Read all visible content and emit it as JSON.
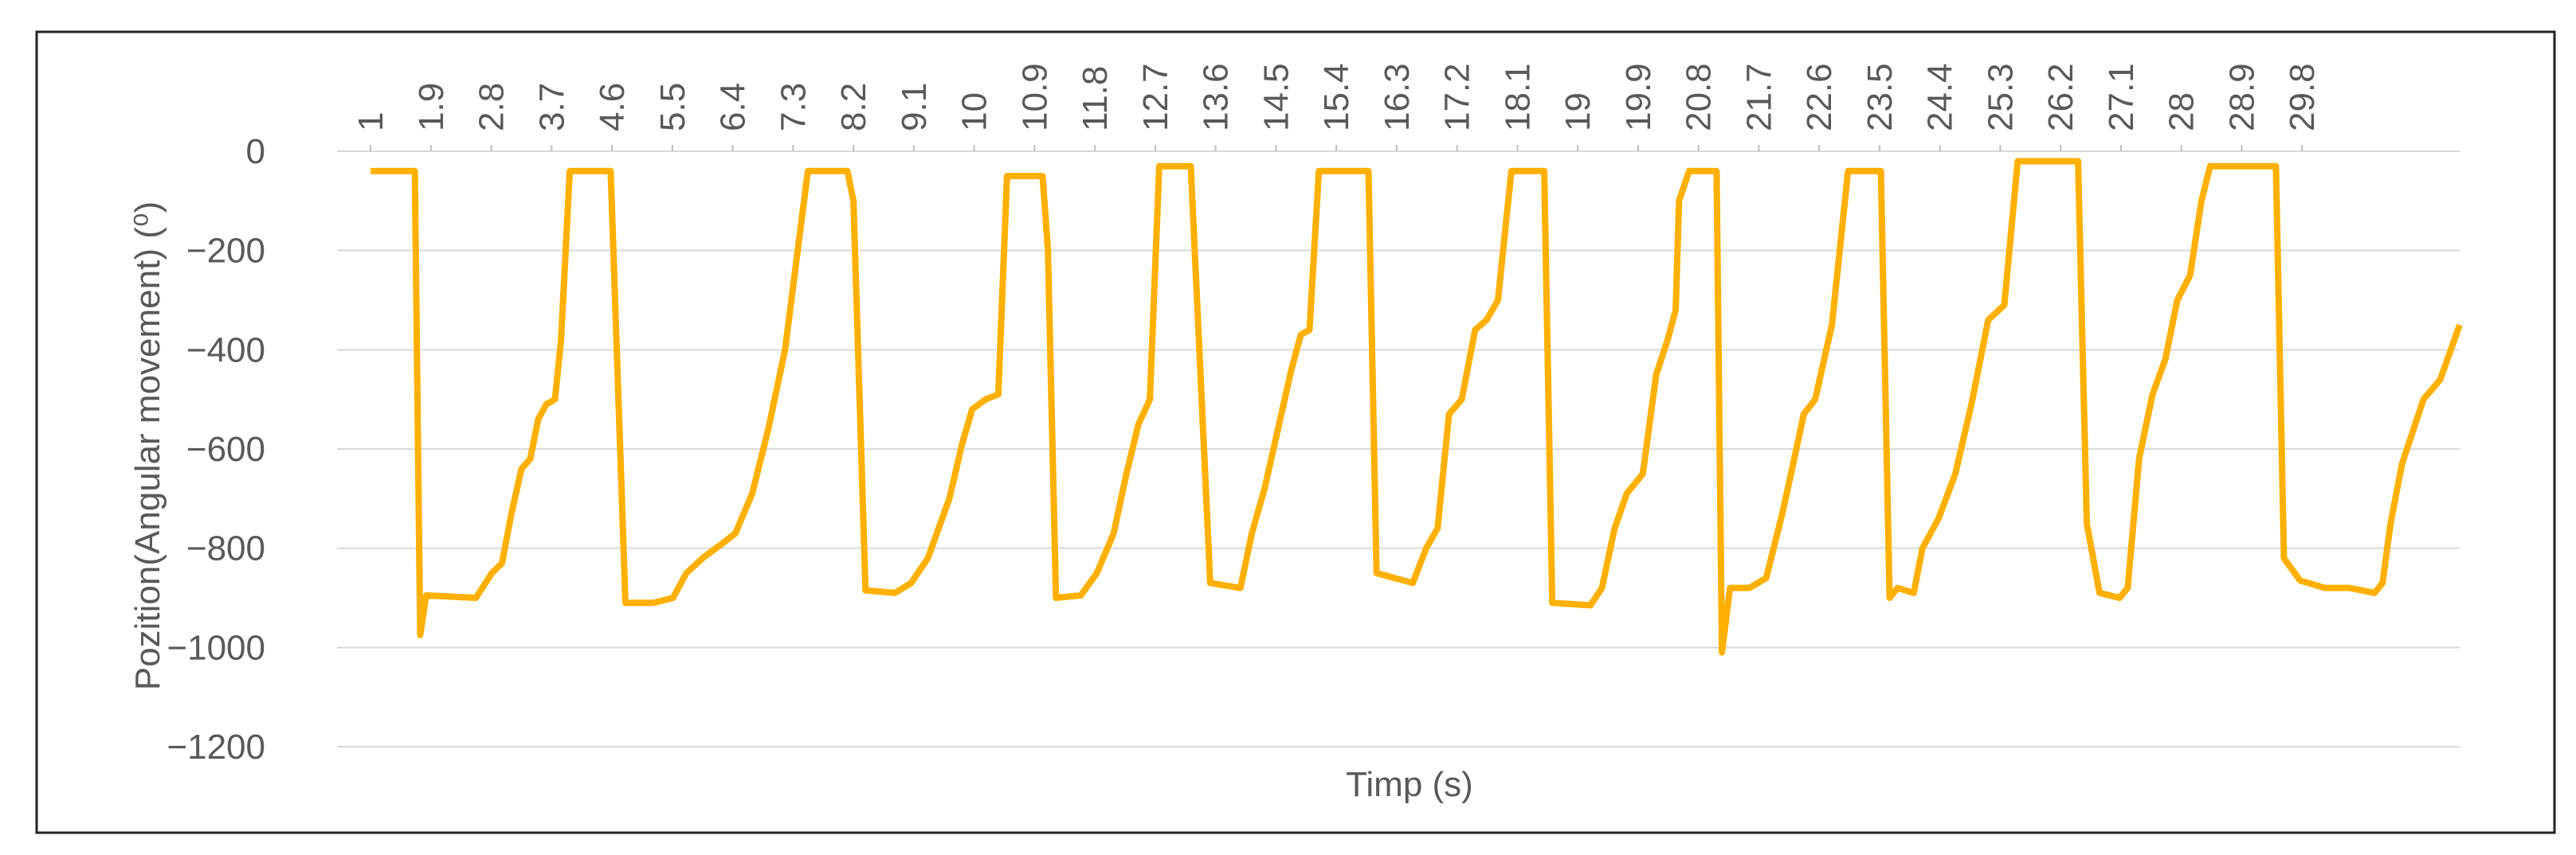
{
  "chart_data": {
    "type": "line",
    "x_label": "Timp (s)",
    "y_label": "Pozition(Angular movement) (⁰)",
    "xlim": [
      0.5,
      32.15
    ],
    "xticks": [
      1,
      1.9,
      2.8,
      3.7,
      4.6,
      5.5,
      6.4,
      7.3,
      8.2,
      9.1,
      10,
      10.9,
      11.8,
      12.7,
      13.6,
      14.5,
      15.4,
      16.3,
      17.2,
      18.1,
      19,
      19.9,
      20.8,
      21.7,
      22.6,
      23.5,
      24.4,
      25.3,
      26.2,
      27.1,
      28,
      28.9,
      29.8
    ],
    "ylim": [
      -1200,
      0
    ],
    "yticks": [
      0,
      {
        "value": -200,
        "label": "−200"
      },
      {
        "value": -400,
        "label": "−400"
      },
      {
        "value": -600,
        "label": "−600"
      },
      {
        "value": -800,
        "label": "−800"
      },
      {
        "value": -1000,
        "label": "−1000"
      },
      {
        "value": -1200,
        "label": "−1200"
      }
    ],
    "grid": true,
    "x": [
      1,
      1.66,
      1.74,
      1.83,
      2.57,
      2.81,
      2.96,
      3.1,
      3.25,
      3.38,
      3.5,
      3.62,
      3.75,
      3.84,
      3.97,
      4.58,
      4.8,
      5.22,
      5.51,
      5.71,
      5.95,
      6.25,
      6.44,
      6.69,
      6.93,
      7.18,
      7.35,
      7.52,
      8.11,
      8.2,
      8.38,
      8.82,
      9.06,
      9.31,
      9.63,
      9.82,
      9.97,
      10.17,
      10.36,
      10.49,
      11.02,
      11.1,
      11.22,
      11.59,
      11.83,
      12.08,
      12.27,
      12.45,
      12.62,
      12.76,
      13.23,
      13.52,
      13.97,
      14.14,
      14.33,
      14.53,
      14.73,
      14.87,
      15.0,
      15.14,
      15.88,
      16.0,
      16.54,
      16.74,
      16.91,
      17.08,
      17.27,
      17.47,
      17.64,
      17.81,
      18.01,
      18.5,
      18.62,
      19.19,
      19.36,
      19.55,
      19.73,
      19.97,
      20.17,
      20.34,
      20.46,
      20.51,
      20.66,
      21.07,
      21.15,
      21.27,
      21.56,
      21.81,
      22.05,
      22.18,
      22.37,
      22.54,
      22.79,
      23.03,
      23.52,
      23.65,
      23.77,
      24.01,
      24.14,
      24.38,
      24.63,
      24.87,
      25.12,
      25.36,
      25.56,
      26.46,
      26.59,
      26.78,
      27.08,
      27.2,
      27.37,
      27.57,
      27.76,
      27.94,
      28.13,
      28.3,
      28.43,
      29.41,
      29.53,
      29.77,
      30.14,
      30.51,
      30.88,
      31.0,
      31.12,
      31.29,
      31.61,
      31.86,
      32.15
    ],
    "series": [
      {
        "color": "#ffb000",
        "values": [
          -40,
          -40,
          -975,
          -895,
          -900,
          -850,
          -830,
          -730,
          -640,
          -620,
          -540,
          -510,
          -500,
          -380,
          -40,
          -40,
          -910,
          -910,
          -900,
          -850,
          -820,
          -790,
          -770,
          -690,
          -560,
          -400,
          -220,
          -40,
          -40,
          -100,
          -885,
          -890,
          -870,
          -820,
          -700,
          -590,
          -520,
          -500,
          -490,
          -50,
          -50,
          -200,
          -900,
          -895,
          -850,
          -770,
          -650,
          -550,
          -500,
          -30,
          -30,
          -870,
          -880,
          -770,
          -680,
          -560,
          -440,
          -370,
          -360,
          -40,
          -40,
          -850,
          -870,
          -800,
          -760,
          -530,
          -500,
          -360,
          -340,
          -300,
          -40,
          -40,
          -910,
          -915,
          -880,
          -760,
          -690,
          -650,
          -450,
          -380,
          -320,
          -100,
          -40,
          -40,
          -1010,
          -880,
          -880,
          -860,
          -730,
          -650,
          -530,
          -500,
          -350,
          -40,
          -40,
          -900,
          -880,
          -890,
          -800,
          -740,
          -650,
          -510,
          -340,
          -310,
          -20,
          -20,
          -750,
          -890,
          -900,
          -880,
          -620,
          -490,
          -420,
          -300,
          -250,
          -100,
          -30,
          -30,
          -820,
          -865,
          -880,
          -880,
          -890,
          -870,
          -750,
          -630,
          -500,
          -460,
          -350
        ]
      }
    ]
  }
}
